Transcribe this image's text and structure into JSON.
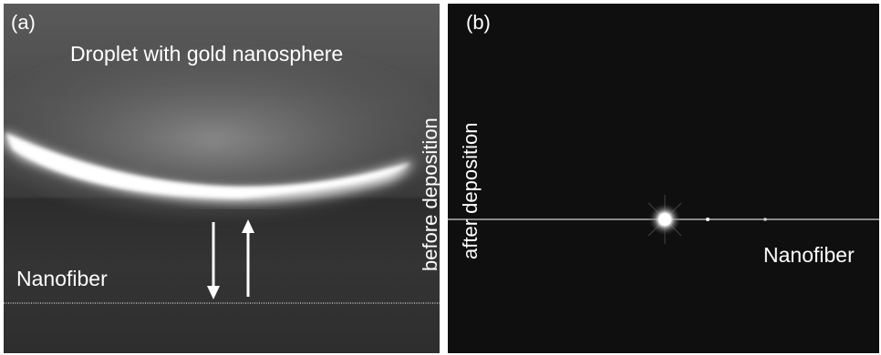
{
  "panel_a": {
    "letter": "(a)",
    "droplet_label": "Droplet with gold nanosphere",
    "fiber_label": "Nanofiber"
  },
  "panel_b": {
    "letter": "(b)",
    "before_label": "before deposition",
    "after_label": "after deposition",
    "fiber_label": "Nanofiber"
  },
  "colors": {
    "text": "#ffffff",
    "background_a": "#4a4a4a",
    "background_b": "#0f0f0f"
  }
}
